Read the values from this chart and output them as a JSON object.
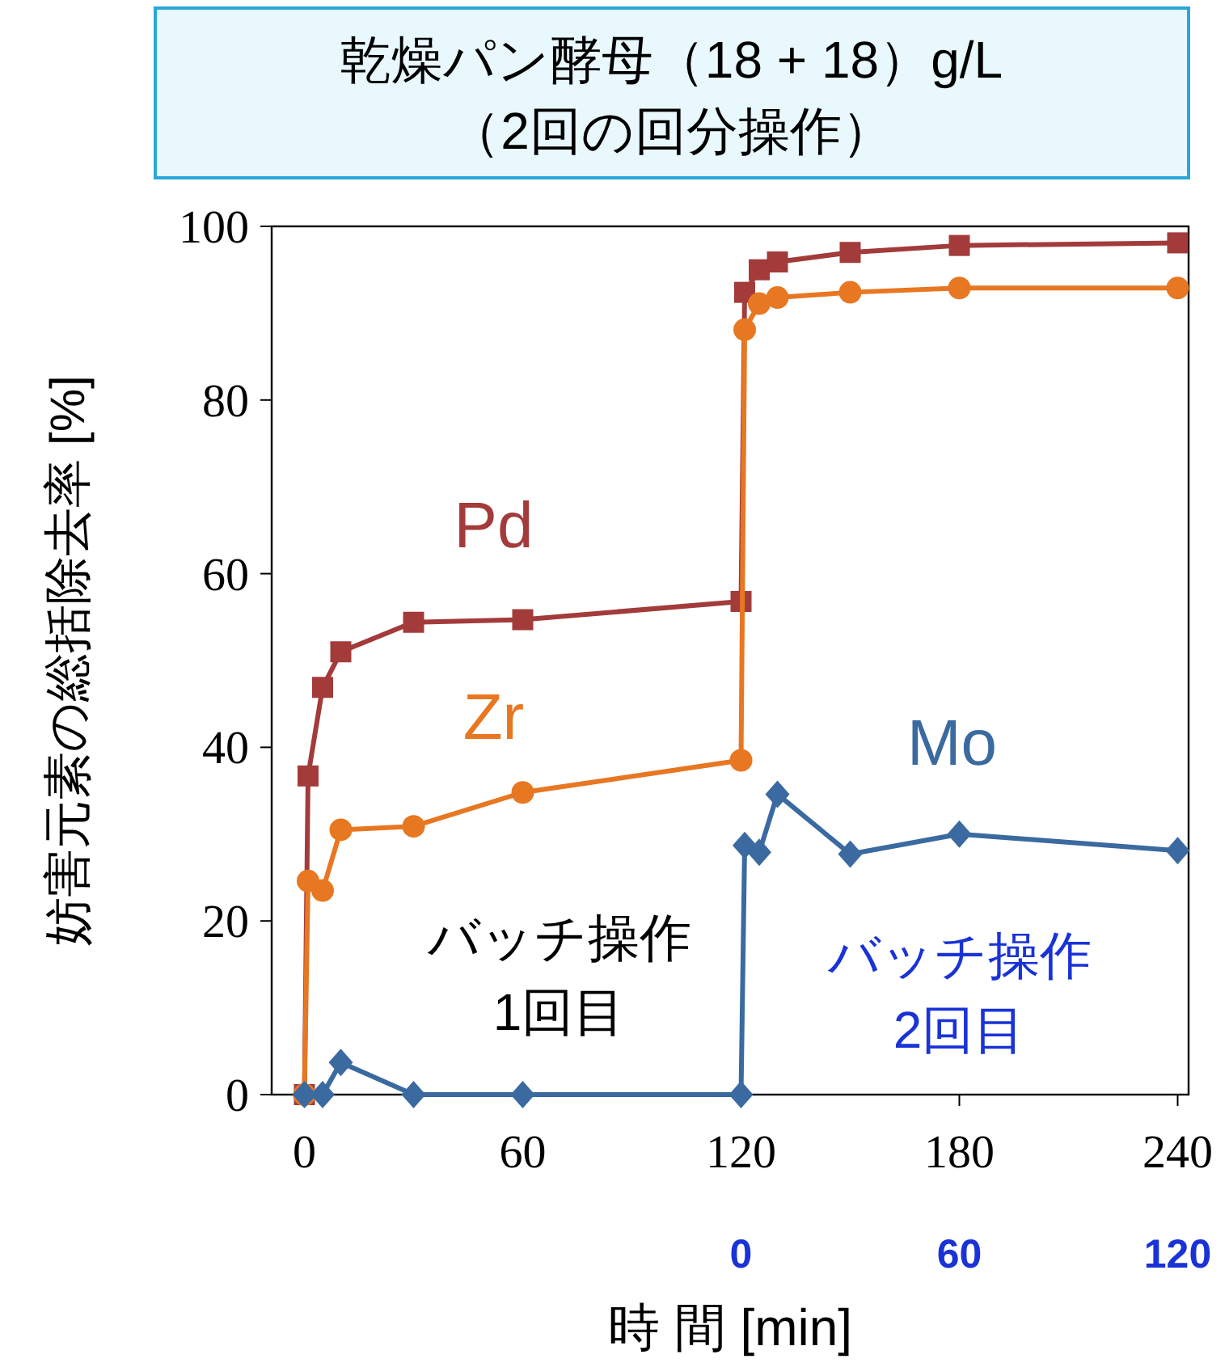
{
  "chart_data": {
    "type": "line",
    "title": "乾燥パン酵母（18 + 18）g/L\n（2回の回分操作）",
    "xlabel": "時 間 [min]",
    "ylabel": "妨害元素の総括除去率 [%]",
    "xlim": [
      -9,
      243
    ],
    "xticks": [
      0,
      60,
      120,
      180,
      240
    ],
    "x2lim": [
      -129,
      123
    ],
    "x2ticks": [
      0,
      60,
      120
    ],
    "ylim": [
      0,
      100
    ],
    "yticks": [
      0,
      20,
      40,
      60,
      80,
      100
    ],
    "grid": false,
    "legend": false,
    "line_style": "solid",
    "series": [
      {
        "name": "Pd",
        "color": "#a33b3b",
        "marker": "square",
        "x": [
          0,
          1,
          5,
          10,
          30,
          60,
          120,
          121,
          125,
          130,
          150,
          180,
          240
        ],
        "values": [
          0,
          36.7,
          46.9,
          51.0,
          54.4,
          54.7,
          56.8,
          92.4,
          95.0,
          95.9,
          97.0,
          97.8,
          98.1
        ]
      },
      {
        "name": "Zr",
        "color": "#e87722",
        "marker": "circle",
        "x": [
          0,
          1,
          5,
          10,
          30,
          60,
          120,
          121,
          125,
          130,
          150,
          180,
          240
        ],
        "values": [
          0,
          24.6,
          23.5,
          30.5,
          30.9,
          34.8,
          38.5,
          88.1,
          91.1,
          91.8,
          92.4,
          92.9,
          92.9
        ]
      },
      {
        "name": "Mo",
        "color": "#3a6aa0",
        "marker": "diamond",
        "x": [
          0,
          5,
          10,
          30,
          60,
          120,
          121,
          125,
          130,
          150,
          180,
          240
        ],
        "values": [
          0,
          0,
          3.7,
          0,
          0,
          0,
          28.7,
          27.9,
          34.6,
          27.7,
          30.0,
          28.1
        ]
      }
    ],
    "annotations": [
      "バッチ操作\n1回目",
      "バッチ操作\n2回目"
    ]
  }
}
